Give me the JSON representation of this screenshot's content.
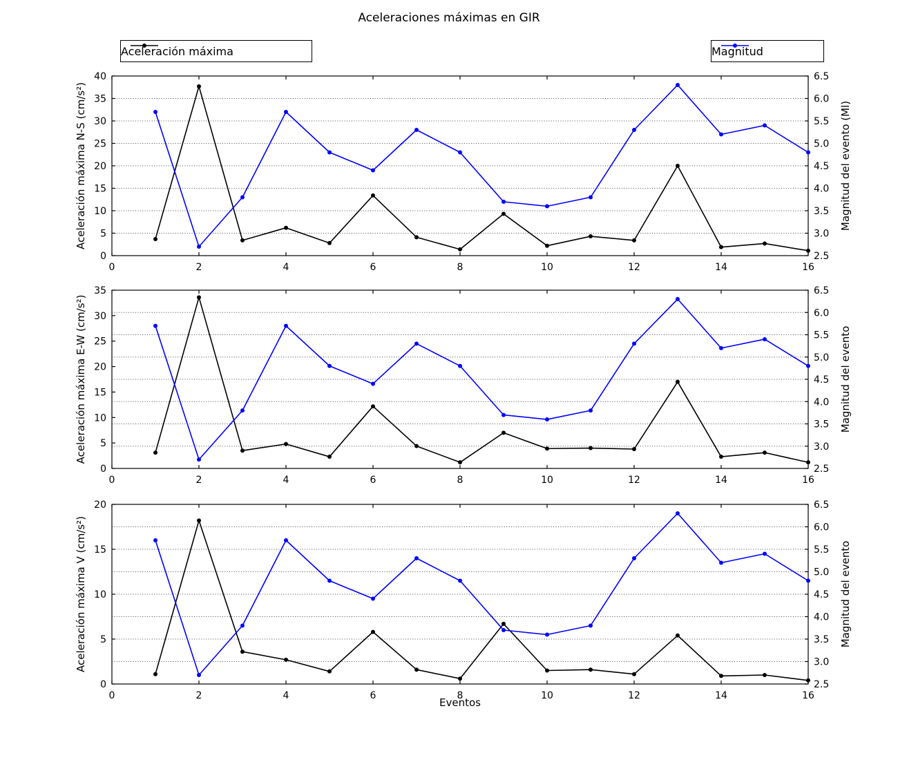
{
  "figure": {
    "title": "Aceleraciones máximas en GIR",
    "xlabel": "Eventos",
    "background": "#ffffff"
  },
  "legends": [
    {
      "label": "Aceleración máxima",
      "color": "#000000"
    },
    {
      "label": "Magnitud",
      "color": "#0000ff"
    }
  ],
  "chart_data": [
    {
      "type": "line",
      "ylabel_left": "Aceleración máxima N-S (cm/s²)",
      "ylabel_right": "Magnitud del evento (Ml)",
      "xlim": [
        0,
        16
      ],
      "xticks": [
        0,
        2,
        4,
        6,
        8,
        10,
        12,
        14,
        16
      ],
      "ylim_left": [
        0,
        40
      ],
      "yticks_left": [
        0,
        5,
        10,
        15,
        20,
        25,
        30,
        35,
        40
      ],
      "ylim_right": [
        2.5,
        6.5
      ],
      "yticks_right": [
        2.5,
        3.0,
        3.5,
        4.0,
        4.5,
        5.0,
        5.5,
        6.0,
        6.5
      ],
      "grid": "horizontal-dotted",
      "x": [
        1,
        2,
        3,
        4,
        5,
        6,
        7,
        8,
        9,
        10,
        11,
        12,
        13,
        14,
        15,
        16
      ],
      "series": [
        {
          "name": "Aceleración máxima",
          "axis": "left",
          "color": "#000000",
          "marker": "circle",
          "values": [
            3.7,
            37.7,
            3.4,
            6.2,
            2.8,
            13.4,
            4.1,
            1.4,
            9.3,
            2.2,
            4.3,
            3.4,
            20.0,
            1.9,
            2.7,
            1.1
          ]
        },
        {
          "name": "Magnitud",
          "axis": "right",
          "color": "#0000ff",
          "marker": "circle",
          "values": [
            5.7,
            2.7,
            3.8,
            5.7,
            4.8,
            4.4,
            5.3,
            4.8,
            3.7,
            3.6,
            3.8,
            5.3,
            6.3,
            5.2,
            5.4,
            4.8
          ]
        }
      ]
    },
    {
      "type": "line",
      "ylabel_left": "Aceleración máxima E-W (cm/s²)",
      "ylabel_right": "Magnitud del evento",
      "xlim": [
        0,
        16
      ],
      "xticks": [
        0,
        2,
        4,
        6,
        8,
        10,
        12,
        14,
        16
      ],
      "ylim_left": [
        0,
        35
      ],
      "yticks_left": [
        0,
        5,
        10,
        15,
        20,
        25,
        30,
        35
      ],
      "ylim_right": [
        2.5,
        6.5
      ],
      "yticks_right": [
        2.5,
        3.0,
        3.5,
        4.0,
        4.5,
        5.0,
        5.5,
        6.0,
        6.5
      ],
      "grid": "horizontal-dotted",
      "x": [
        1,
        2,
        3,
        4,
        5,
        6,
        7,
        8,
        9,
        10,
        11,
        12,
        13,
        14,
        15,
        16
      ],
      "series": [
        {
          "name": "Aceleración máxima",
          "axis": "left",
          "color": "#000000",
          "marker": "circle",
          "values": [
            3.1,
            33.6,
            3.5,
            4.8,
            2.3,
            12.2,
            4.4,
            1.2,
            7.0,
            3.9,
            4.0,
            3.8,
            17.0,
            2.3,
            3.1,
            1.2
          ]
        },
        {
          "name": "Magnitud",
          "axis": "right",
          "color": "#0000ff",
          "marker": "circle",
          "values": [
            5.7,
            2.7,
            3.8,
            5.7,
            4.8,
            4.4,
            5.3,
            4.8,
            3.7,
            3.6,
            3.8,
            5.3,
            6.3,
            5.2,
            5.4,
            4.8
          ]
        }
      ]
    },
    {
      "type": "line",
      "ylabel_left": "Aceleración máxima V (cm/s²)",
      "ylabel_right": "Magnitud del evento",
      "xlim": [
        0,
        16
      ],
      "xticks": [
        0,
        2,
        4,
        6,
        8,
        10,
        12,
        14,
        16
      ],
      "ylim_left": [
        0,
        20
      ],
      "yticks_left": [
        0,
        5,
        10,
        15,
        20
      ],
      "ylim_right": [
        2.5,
        6.5
      ],
      "yticks_right": [
        2.5,
        3.0,
        3.5,
        4.0,
        4.5,
        5.0,
        5.5,
        6.0,
        6.5
      ],
      "grid": "horizontal-dotted",
      "x": [
        1,
        2,
        3,
        4,
        5,
        6,
        7,
        8,
        9,
        10,
        11,
        12,
        13,
        14,
        15,
        16
      ],
      "series": [
        {
          "name": "Aceleración máxima",
          "axis": "left",
          "color": "#000000",
          "marker": "circle",
          "values": [
            1.1,
            18.2,
            3.6,
            2.7,
            1.4,
            5.8,
            1.6,
            0.6,
            6.7,
            1.5,
            1.6,
            1.1,
            5.4,
            0.9,
            1.0,
            0.4
          ]
        },
        {
          "name": "Magnitud",
          "axis": "right",
          "color": "#0000ff",
          "marker": "circle",
          "values": [
            5.7,
            2.7,
            3.8,
            5.7,
            4.8,
            4.4,
            5.3,
            4.8,
            3.7,
            3.6,
            3.8,
            5.3,
            6.3,
            5.2,
            5.4,
            4.8
          ]
        }
      ]
    }
  ]
}
